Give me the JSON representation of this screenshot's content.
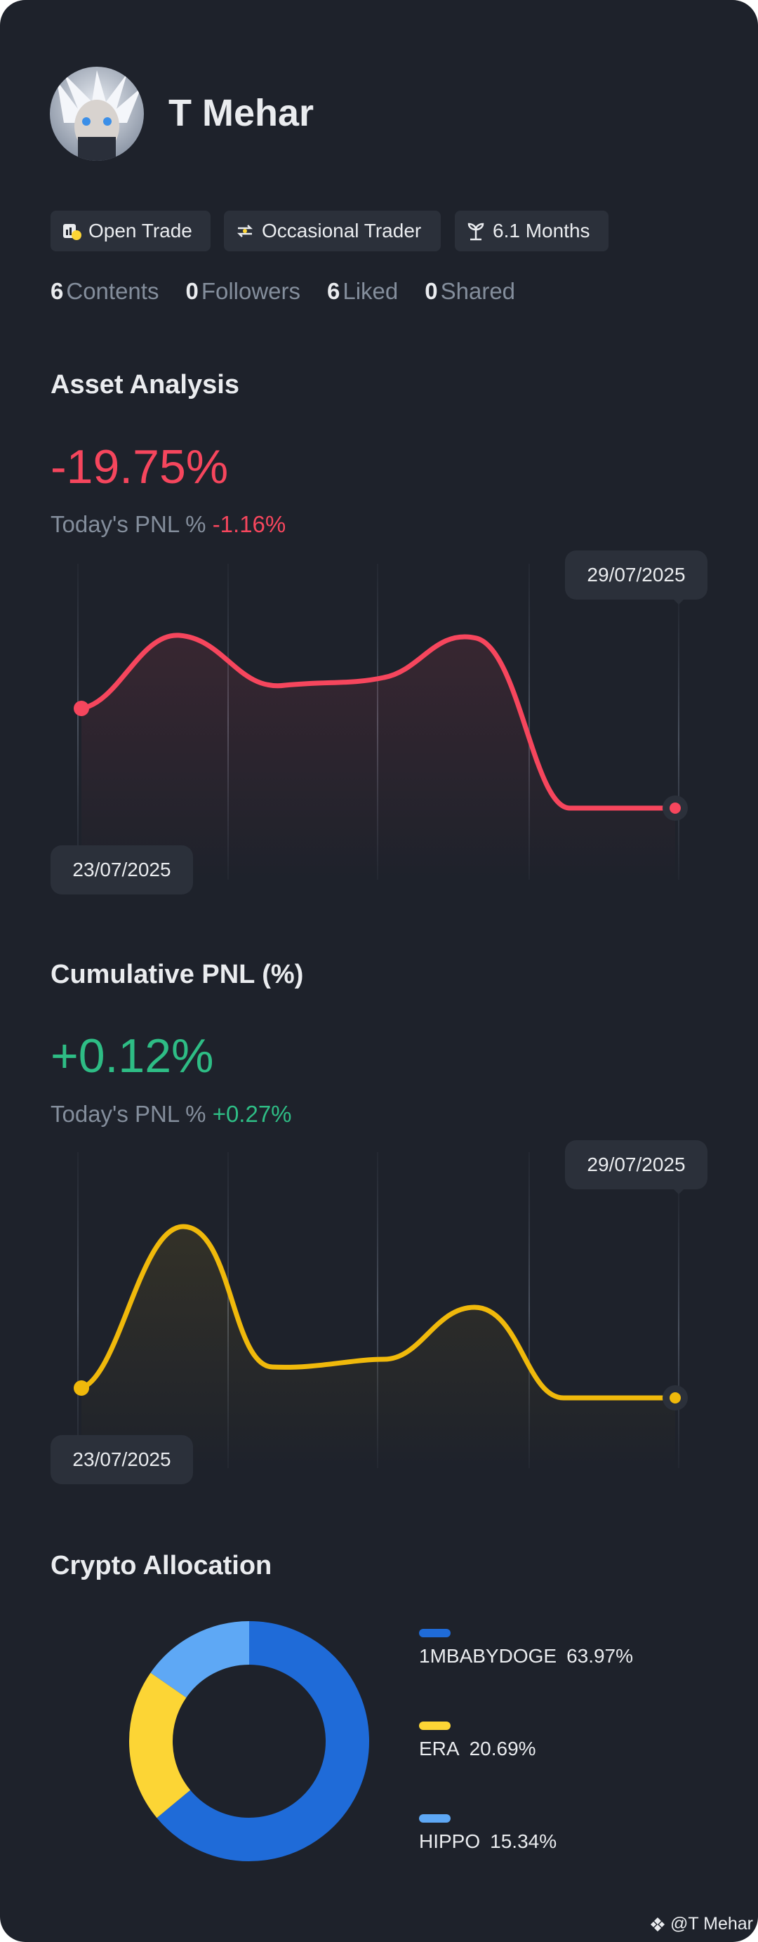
{
  "profile": {
    "name": "T Mehar",
    "tags": [
      "Open Trade",
      "Occasional Trader",
      "6.1 Months"
    ],
    "stats": [
      {
        "value": 6,
        "label": "Contents"
      },
      {
        "value": 0,
        "label": "Followers"
      },
      {
        "value": 6,
        "label": "Liked"
      },
      {
        "value": 0,
        "label": "Shared"
      }
    ]
  },
  "asset_analysis": {
    "title": "Asset Analysis",
    "value": "-19.75%",
    "today_label": "Today's PNL %",
    "today_value": "-1.16%",
    "start_date": "23/07/2025",
    "end_date": "29/07/2025"
  },
  "cumulative_pnl": {
    "title": "Cumulative PNL (%)",
    "value": "+0.12%",
    "today_label": "Today's PNL %",
    "today_value": "+0.27%",
    "start_date": "23/07/2025",
    "end_date": "29/07/2025"
  },
  "chart_data": {
    "type": "donut",
    "title": "Crypto Allocation",
    "categories": [
      "1MBABYDOGE",
      "ERA",
      "HIPPO"
    ],
    "values": [
      63.97,
      20.69,
      15.34
    ],
    "value_labels": [
      "63.97%",
      "20.69%",
      "15.34%"
    ],
    "colors": [
      "#1f6bd8",
      "#fcd535",
      "#5ea8f5"
    ]
  },
  "watermark": "@T Mehar"
}
